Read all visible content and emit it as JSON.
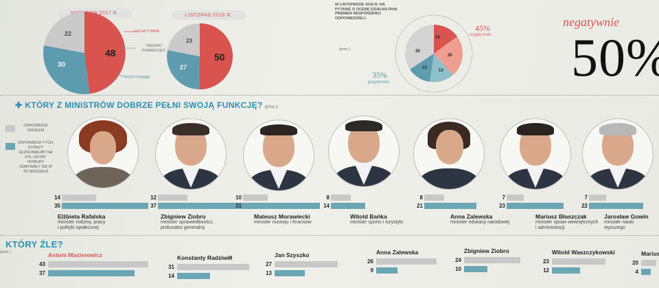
{
  "top_charts": [
    {
      "title": "KWIECIEŃ 2017 R.",
      "values": {
        "neg": 48,
        "pos": 30,
        "mid": 22
      }
    },
    {
      "title": "LISTOPAD 2016 R.",
      "values": {
        "neg": 50,
        "pos": 27,
        "mid": 23
      }
    }
  ],
  "pie_labels": {
    "negatywnie": "NEGATYWNIE",
    "trudno": "TRUDNO POWIEDZIEĆ",
    "pozytywnie": "POZYTYWNIE"
  },
  "right_chart": {
    "caption": "W LISTOPADZIE 2016 R. NA PYTANIE O OCENĘ DZIAŁAŃ PANI PREMIER RESPONDENCI ODPOWIEDZIELI:",
    "unit": "(proc.)",
    "slices": [
      15,
      30,
      13,
      12,
      20
    ],
    "neg_total": "45%",
    "neg_label": "negatywnie",
    "pos_total": "35%",
    "pos_label": "pozytywnie"
  },
  "headline": {
    "word": "negatywnie",
    "value": "50%"
  },
  "section_good": {
    "title": "KTÓRY Z MINISTRÓW DOBRZE PEŁNI SWOJĄ FUNKCJĘ?",
    "unit": "(proc.)",
    "legend_all": "ODPOWIEDZI OGÓŁEM",
    "legend_pis": "ODPOWIEDZI TYCH, KTÓRZY GŁOSOWALIBY NA PIS, GDYBY WYBORY ODBYWAŁY SIĘ W TĘ NIEDZIELĘ"
  },
  "chart_data": {
    "type": "bar",
    "categories": [
      "Elżbieta Rafalska",
      "Zbigniew Ziobro",
      "Mateusz Morawiecki",
      "Witold Bańka",
      "Anna Zalewska",
      "Mariusz Błaszczak",
      "Jarosław Gowin"
    ],
    "series": [
      {
        "name": "ODPOWIEDZI OGÓŁEM",
        "values": [
          14,
          12,
          10,
          8,
          8,
          7,
          7
        ]
      },
      {
        "name": "ODPOWIEDZI TYCH, KTÓRZY GŁOSOWALIBY NA PIS",
        "values": [
          35,
          37,
          31,
          14,
          21,
          23,
          22
        ]
      }
    ]
  },
  "ministers": [
    {
      "name": "Elżbieta Rafalska",
      "role1": "minister rodziny, pracy",
      "role2": "i polityki społecznej",
      "all": 14,
      "pis": 35
    },
    {
      "name": "Zbigniew Ziobro",
      "role1": "minister sprawiedliwości,",
      "role2": "prokurator generalny",
      "all": 12,
      "pis": 37
    },
    {
      "name": "Mateusz Morawiecki",
      "role1": "minister rozwoju i finansów",
      "role2": "",
      "all": 10,
      "pis": 31
    },
    {
      "name": "Witold Bańka",
      "role1": "minister sportu i turystyki",
      "role2": "",
      "all": 8,
      "pis": 14
    },
    {
      "name": "Anna Zalewska",
      "role1": "minister edukacji narodowej",
      "role2": "",
      "all": 8,
      "pis": 21
    },
    {
      "name": "Mariusz Błaszczak",
      "role1": "minister spraw wewnętrznych",
      "role2": "i administracji",
      "all": 7,
      "pis": 23
    },
    {
      "name": "Jarosław Gowin",
      "role1": "minister nauki",
      "role2": "wyższego",
      "all": 7,
      "pis": 22
    }
  ],
  "section_bad": {
    "title": "KTÓRY ŹLE?",
    "unit": "(proc.)"
  },
  "bad_ministers": [
    {
      "name": "Antoni Macierewicz",
      "all": 43,
      "pis": 37,
      "highlight": true
    },
    {
      "name": "Konstanty Radziwiłł",
      "all": 31,
      "pis": 14
    },
    {
      "name": "Jan Szyszko",
      "all": 27,
      "pis": 13
    },
    {
      "name": "Anna Zalewska",
      "all": 26,
      "pis": 9
    },
    {
      "name": "Zbigniew Ziobro",
      "all": 24,
      "pis": 10
    },
    {
      "name": "Witold Waszczykowski",
      "all": 23,
      "pis": 12
    },
    {
      "name": "Mariusz Błaszczak",
      "all": 20,
      "pis": 4
    }
  ],
  "colors": {
    "red": "#d9534f",
    "teal": "#5d9cae",
    "grey": "#c9c9c9",
    "blue": "#2a8fb5"
  }
}
